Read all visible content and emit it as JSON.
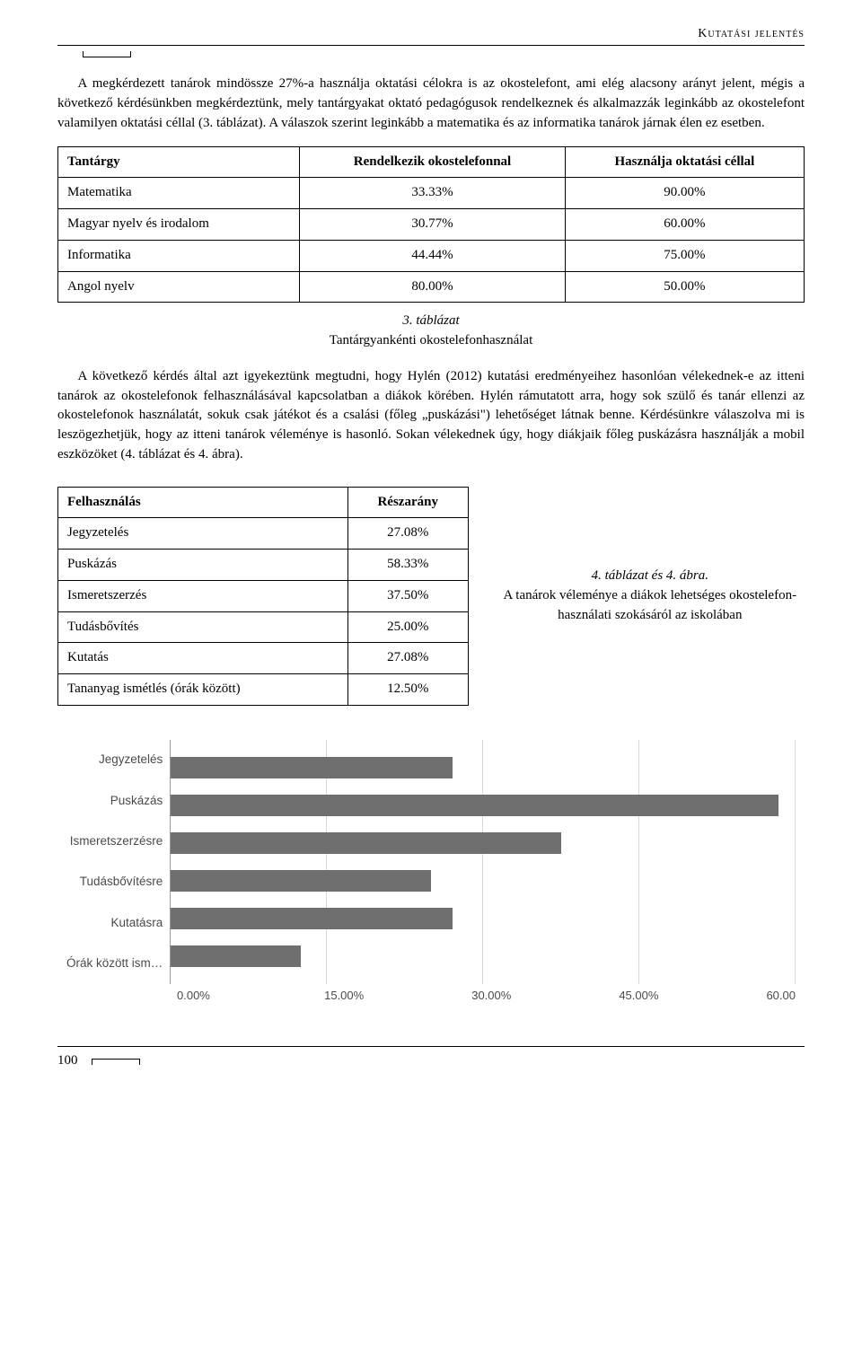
{
  "header": "Kutatási jelentés",
  "para1": "A megkérdezett tanárok mindössze 27%-a használja oktatási célokra is az okostelefont, ami elég alacsony arányt jelent, mégis a következő kérdésünkben megkérdeztünk, mely tantárgyakat oktató pedagógusok rendelkeznek és alkalmazzák leginkább az okostelefont valamilyen oktatási céllal (3. táblázat). A válaszok szerint leginkább a matematika és az informatika tanárok járnak élen ez esetben.",
  "table1": {
    "headers": [
      "Tantárgy",
      "Rendelkezik okostelefonnal",
      "Használja oktatási céllal"
    ],
    "rows": [
      [
        "Matematika",
        "33.33%",
        "90.00%"
      ],
      [
        "Magyar nyelv és irodalom",
        "30.77%",
        "60.00%"
      ],
      [
        "Informatika",
        "44.44%",
        "75.00%"
      ],
      [
        "Angol nyelv",
        "80.00%",
        "50.00%"
      ]
    ]
  },
  "caption1": {
    "num": "3. táblázat",
    "text": "Tantárgyankénti okostelefonhasználat"
  },
  "para2": "A következő kérdés által azt igyekeztünk megtudni, hogy Hylén (2012) kutatási eredményeihez hasonlóan vélekednek-e az itteni tanárok az okostelefonok felhasználásával kapcsolatban a diákok körében. Hylén rámutatott arra, hogy sok szülő és tanár ellenzi az okostelefonok használatát, sokuk csak játékot és a csalási (főleg „puskázási\") lehetőséget látnak benne. Kérdésünkre válaszolva mi is leszögezhetjük, hogy az itteni tanárok véleménye is hasonló. Sokan vélekednek úgy, hogy diákjaik főleg puskázásra használják a mobil eszközöket (4. táblázat és 4. ábra).",
  "table2": {
    "headers": [
      "Felhasználás",
      "Részarány"
    ],
    "rows": [
      [
        "Jegyzetelés",
        "27.08%"
      ],
      [
        "Puskázás",
        "58.33%"
      ],
      [
        "Ismeretszerzés",
        "37.50%"
      ],
      [
        "Tudásbővítés",
        "25.00%"
      ],
      [
        "Kutatás",
        "27.08%"
      ],
      [
        "Tananyag ismétlés (órák között)",
        "12.50%"
      ]
    ]
  },
  "caption2": {
    "num": "4. táblázat és 4. ábra.",
    "text": "A tanárok véleménye a diákok lehetséges okostelefon-használati szokásáról az iskolában"
  },
  "chart": {
    "type": "bar-horizontal",
    "bar_color": "#6f6f6f",
    "grid_color": "#d9d9d9",
    "axis_color": "#999999",
    "label_color": "#4b4b4b",
    "label_fontsize": 13.5,
    "xlim": [
      0,
      60
    ],
    "xticks": [
      "0.00%",
      "15.00%",
      "30.00%",
      "45.00%",
      "60.00"
    ],
    "categories": [
      "Jegyzetelés",
      "Puskázás",
      "Ismeretszerzésre",
      "Tudásbővítésre",
      "Kutatásra",
      "Órák között ism…"
    ],
    "values": [
      27.08,
      58.33,
      37.5,
      25.0,
      27.08,
      12.5
    ]
  },
  "pagenum": "100"
}
